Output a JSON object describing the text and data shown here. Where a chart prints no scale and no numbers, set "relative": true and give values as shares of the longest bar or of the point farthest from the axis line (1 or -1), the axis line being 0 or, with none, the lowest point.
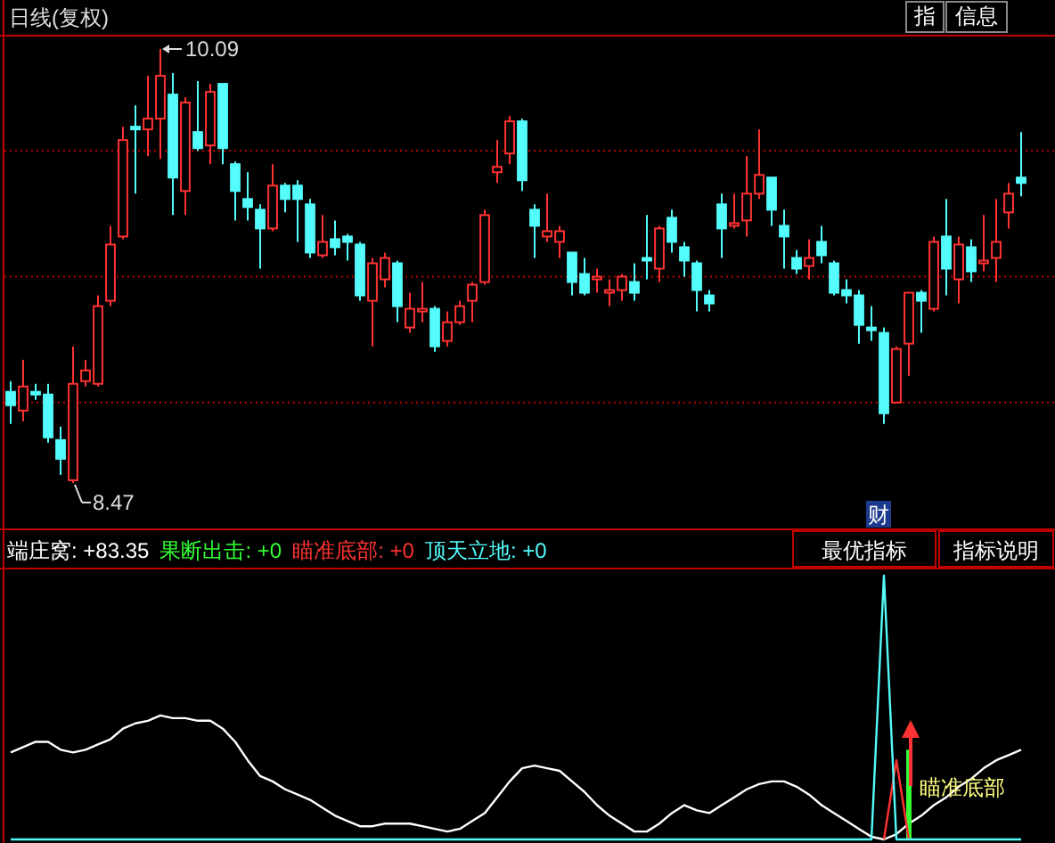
{
  "chart_data": [
    {
      "type": "candlestick",
      "categories": [
        null,
        null,
        null,
        null,
        null,
        null,
        null,
        null,
        null,
        null,
        null,
        null,
        null,
        null,
        null,
        null,
        null,
        null,
        null,
        null,
        null,
        null,
        null,
        null,
        null,
        null,
        null,
        null,
        null,
        null,
        null,
        null,
        null,
        null,
        null,
        null,
        null,
        null,
        null,
        null,
        null,
        null,
        null,
        null,
        null,
        null,
        null,
        null,
        null,
        null,
        null,
        null,
        null,
        null,
        null,
        null,
        null,
        null,
        null,
        null,
        null,
        null,
        null,
        null,
        null,
        null,
        null,
        null,
        null,
        null,
        null,
        null,
        null,
        null,
        null,
        null,
        null,
        null,
        null,
        null,
        null,
        null
      ],
      "ohlc": [
        [
          8.81,
          8.85,
          8.69,
          8.76
        ],
        [
          8.74,
          8.93,
          8.7,
          8.83
        ],
        [
          8.81,
          8.84,
          8.78,
          8.8
        ],
        [
          8.8,
          8.84,
          8.62,
          8.64
        ],
        [
          8.63,
          8.68,
          8.5,
          8.56
        ],
        [
          8.48,
          8.98,
          8.47,
          8.84
        ],
        [
          8.85,
          8.93,
          8.83,
          8.89
        ],
        [
          8.84,
          9.17,
          8.83,
          9.13
        ],
        [
          9.15,
          9.43,
          9.13,
          9.36
        ],
        [
          9.39,
          9.8,
          9.38,
          9.75
        ],
        [
          9.8,
          9.88,
          9.55,
          9.79
        ],
        [
          9.79,
          9.99,
          9.69,
          9.83
        ],
        [
          9.83,
          10.09,
          9.68,
          9.99
        ],
        [
          9.92,
          10.0,
          9.47,
          9.61
        ],
        [
          9.56,
          9.91,
          9.47,
          9.89
        ],
        [
          9.78,
          9.97,
          9.71,
          9.72
        ],
        [
          9.73,
          9.96,
          9.66,
          9.93
        ],
        [
          9.96,
          9.96,
          9.66,
          9.72
        ],
        [
          9.66,
          9.67,
          9.45,
          9.56
        ],
        [
          9.53,
          9.63,
          9.45,
          9.5
        ],
        [
          9.49,
          9.51,
          9.27,
          9.42
        ],
        [
          9.42,
          9.66,
          9.41,
          9.58
        ],
        [
          9.58,
          9.59,
          9.48,
          9.53
        ],
        [
          9.58,
          9.6,
          9.37,
          9.53
        ],
        [
          9.51,
          9.53,
          9.31,
          9.33
        ],
        [
          9.32,
          9.47,
          9.31,
          9.37
        ],
        [
          9.38,
          9.45,
          9.32,
          9.35
        ],
        [
          9.39,
          9.4,
          9.3,
          9.37
        ],
        [
          9.36,
          9.37,
          9.15,
          9.17
        ],
        [
          9.15,
          9.31,
          8.98,
          9.29
        ],
        [
          9.23,
          9.33,
          9.2,
          9.31
        ],
        [
          9.29,
          9.3,
          9.07,
          9.13
        ],
        [
          9.05,
          9.18,
          9.03,
          9.12
        ],
        [
          9.11,
          9.22,
          9.07,
          9.12
        ],
        [
          9.12,
          9.13,
          8.96,
          8.98
        ],
        [
          9.0,
          9.11,
          8.98,
          9.07
        ],
        [
          9.07,
          9.15,
          9.06,
          9.13
        ],
        [
          9.15,
          9.22,
          9.07,
          9.21
        ],
        [
          9.22,
          9.49,
          9.21,
          9.47
        ],
        [
          9.63,
          9.75,
          9.59,
          9.65
        ],
        [
          9.7,
          9.84,
          9.66,
          9.82
        ],
        [
          9.82,
          9.83,
          9.56,
          9.6
        ],
        [
          9.49,
          9.51,
          9.31,
          9.43
        ],
        [
          9.39,
          9.55,
          9.37,
          9.41
        ],
        [
          9.37,
          9.43,
          9.31,
          9.41
        ],
        [
          9.33,
          9.33,
          9.17,
          9.22
        ],
        [
          9.25,
          9.31,
          9.17,
          9.18
        ],
        [
          9.23,
          9.27,
          9.18,
          9.24
        ],
        [
          9.18,
          9.23,
          9.13,
          9.19
        ],
        [
          9.19,
          9.25,
          9.15,
          9.24
        ],
        [
          9.22,
          9.29,
          9.15,
          9.18
        ],
        [
          9.31,
          9.47,
          9.23,
          9.3
        ],
        [
          9.27,
          9.43,
          9.22,
          9.42
        ],
        [
          9.46,
          9.49,
          9.33,
          9.37
        ],
        [
          9.35,
          9.37,
          9.24,
          9.3
        ],
        [
          9.29,
          9.3,
          9.11,
          9.19
        ],
        [
          9.17,
          9.19,
          9.11,
          9.14
        ],
        [
          9.51,
          9.55,
          9.31,
          9.42
        ],
        [
          9.43,
          9.55,
          9.42,
          9.44
        ],
        [
          9.45,
          9.69,
          9.39,
          9.55
        ],
        [
          9.55,
          9.79,
          9.53,
          9.62
        ],
        [
          9.61,
          9.61,
          9.43,
          9.49
        ],
        [
          9.43,
          9.49,
          9.27,
          9.39
        ],
        [
          9.31,
          9.34,
          9.25,
          9.27
        ],
        [
          9.28,
          9.38,
          9.23,
          9.31
        ],
        [
          9.37,
          9.43,
          9.29,
          9.32
        ],
        [
          9.29,
          9.3,
          9.17,
          9.18
        ],
        [
          9.19,
          9.23,
          9.14,
          9.17
        ],
        [
          9.17,
          9.19,
          8.99,
          9.06
        ],
        [
          9.05,
          9.13,
          9.0,
          9.04
        ],
        [
          9.03,
          9.05,
          8.69,
          8.73
        ],
        [
          8.77,
          8.98,
          8.77,
          8.97
        ],
        [
          8.99,
          9.18,
          8.87,
          9.18
        ],
        [
          9.18,
          9.19,
          9.03,
          9.15
        ],
        [
          9.12,
          9.39,
          9.11,
          9.37
        ],
        [
          9.39,
          9.53,
          9.17,
          9.27
        ],
        [
          9.23,
          9.39,
          9.14,
          9.36
        ],
        [
          9.35,
          9.38,
          9.22,
          9.26
        ],
        [
          9.29,
          9.47,
          9.26,
          9.3
        ],
        [
          9.31,
          9.53,
          9.22,
          9.37
        ],
        [
          9.48,
          9.59,
          9.42,
          9.55
        ],
        [
          9.61,
          9.78,
          9.54,
          9.59
        ]
      ],
      "ylim": [
        8.31,
        10.14
      ],
      "yticks": [
        {
          "value": 8.77,
          "label": null
        },
        {
          "value": 9.24,
          "label": null
        },
        {
          "value": 9.71,
          "label": null
        }
      ],
      "grid": "y",
      "annotations": [
        "日线(复权)",
        "指",
        "信息",
        "财",
        "10.09",
        "8.47"
      ]
    },
    {
      "type": "line",
      "relative": true,
      "categories": [
        null,
        null,
        null,
        null,
        null,
        null,
        null,
        null,
        null,
        null,
        null,
        null,
        null,
        null,
        null,
        null,
        null,
        null,
        null,
        null,
        null,
        null,
        null,
        null,
        null,
        null,
        null,
        null,
        null,
        null,
        null,
        null,
        null,
        null,
        null,
        null,
        null,
        null,
        null,
        null,
        null,
        null,
        null,
        null,
        null,
        null,
        null,
        null,
        null,
        null,
        null,
        null,
        null,
        null,
        null,
        null,
        null,
        null,
        null,
        null,
        null,
        null,
        null,
        null,
        null,
        null,
        null,
        null,
        null,
        null,
        null,
        null,
        null,
        null,
        null,
        null,
        null,
        null,
        null,
        null,
        null,
        null
      ],
      "series": [
        {
          "name": "端庄窝: +83.35",
          "color": "#ffffff",
          "values": [
            0.33,
            0.35,
            0.37,
            0.37,
            0.34,
            0.33,
            0.34,
            0.36,
            0.38,
            0.42,
            0.44,
            0.45,
            0.47,
            0.46,
            0.46,
            0.45,
            0.45,
            0.42,
            0.37,
            0.3,
            0.24,
            0.22,
            0.19,
            0.17,
            0.15,
            0.12,
            0.09,
            0.07,
            0.05,
            0.05,
            0.06,
            0.06,
            0.06,
            0.05,
            0.04,
            0.03,
            0.04,
            0.07,
            0.1,
            0.16,
            0.22,
            0.27,
            0.28,
            0.27,
            0.26,
            0.22,
            0.18,
            0.13,
            0.09,
            0.06,
            0.03,
            0.03,
            0.06,
            0.1,
            0.13,
            0.11,
            0.1,
            0.13,
            0.16,
            0.19,
            0.21,
            0.22,
            0.22,
            0.2,
            0.17,
            0.13,
            0.1,
            0.07,
            0.04,
            0.01,
            0.0,
            0.02,
            0.06,
            0.09,
            0.13,
            0.16,
            0.2,
            0.23,
            0.27,
            0.3,
            0.32,
            0.34
          ]
        },
        {
          "name": "果断出击: +0",
          "color": "#33ff33",
          "type": "bar",
          "values": [
            null,
            null,
            null,
            null,
            null,
            null,
            null,
            null,
            null,
            null,
            null,
            null,
            null,
            null,
            null,
            null,
            null,
            null,
            null,
            null,
            null,
            null,
            null,
            null,
            null,
            null,
            null,
            null,
            null,
            null,
            null,
            null,
            null,
            null,
            null,
            null,
            null,
            null,
            null,
            null,
            null,
            null,
            null,
            null,
            null,
            null,
            null,
            null,
            null,
            null,
            null,
            null,
            null,
            null,
            null,
            null,
            null,
            null,
            null,
            null,
            null,
            null,
            null,
            null,
            null,
            null,
            null,
            null,
            null,
            null,
            null,
            null,
            0.34,
            null,
            null,
            null,
            null,
            null,
            null,
            null,
            null,
            null
          ]
        },
        {
          "name": "瞄准底部: +0",
          "color": "#ff3333",
          "values": [
            null,
            null,
            null,
            null,
            null,
            null,
            null,
            null,
            null,
            null,
            null,
            null,
            null,
            null,
            null,
            null,
            null,
            null,
            null,
            null,
            null,
            null,
            null,
            null,
            null,
            null,
            null,
            null,
            null,
            null,
            null,
            null,
            null,
            null,
            null,
            null,
            null,
            null,
            null,
            null,
            null,
            null,
            null,
            null,
            null,
            null,
            null,
            null,
            null,
            null,
            null,
            null,
            null,
            null,
            null,
            null,
            null,
            null,
            null,
            null,
            null,
            null,
            null,
            null,
            null,
            null,
            null,
            null,
            null,
            null,
            0,
            0.3,
            0,
            null,
            null,
            null,
            null,
            null,
            null,
            null,
            null,
            null
          ]
        },
        {
          "name": "顶天立地: +0",
          "color": "#54fcfc",
          "values": [
            0,
            0,
            0,
            0,
            0,
            0,
            0,
            0,
            0,
            0,
            0,
            0,
            0,
            0,
            0,
            0,
            0,
            0,
            0,
            0,
            0,
            0,
            0,
            0,
            0,
            0,
            0,
            0,
            0,
            0,
            0,
            0,
            0,
            0,
            0,
            0,
            0,
            0,
            0,
            0,
            0,
            0,
            0,
            0,
            0,
            0,
            0,
            0,
            0,
            0,
            0,
            0,
            0,
            0,
            0,
            0,
            0,
            0,
            0,
            0,
            0,
            0,
            0,
            0,
            0,
            0,
            0,
            0,
            0,
            0,
            1,
            0,
            0,
            0,
            0,
            0,
            0,
            0,
            0,
            0,
            0,
            0
          ]
        }
      ],
      "legend": "top left",
      "annotations": [
        "最优指标",
        "指标说明",
        "瞄准底部"
      ]
    }
  ]
}
